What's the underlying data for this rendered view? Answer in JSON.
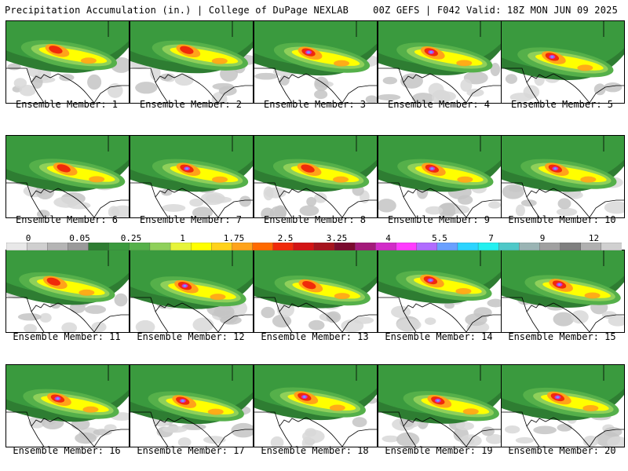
{
  "header": {
    "left_title": "Precipitation Accumulation (in.) | College of DuPage NEXLAB",
    "right_title": "00Z GEFS | F042 Valid: 18Z MON JUN 09 2025"
  },
  "colorbar": {
    "labels": [
      "0",
      "0.05",
      "0.25",
      "1",
      "1.75",
      "2.5",
      "3.25",
      "4",
      "5.5",
      "7",
      "9",
      "12"
    ],
    "colors": [
      "#e8e8e8",
      "#cfcfcf",
      "#b4b4b4",
      "#9a9a9a",
      "#2e7d32",
      "#3a9a3e",
      "#55b04a",
      "#8fd05a",
      "#e6f43a",
      "#ffff00",
      "#ffd21a",
      "#ffa31a",
      "#ff6a00",
      "#f02a0a",
      "#d21414",
      "#a5141e",
      "#7a0a2e",
      "#a31a7a",
      "#d22cc8",
      "#ff3cff",
      "#b06cff",
      "#6aa0ff",
      "#2cd4ff",
      "#22f0f0",
      "#4fc8c8",
      "#9ab4b4",
      "#a0a0a0",
      "#7f7f7f",
      "#b0b0b0",
      "#d0d0d0"
    ]
  },
  "panels": [
    {
      "caption": "Ensemble Member: 1"
    },
    {
      "caption": "Ensemble Member: 2"
    },
    {
      "caption": "Ensemble Member: 3"
    },
    {
      "caption": "Ensemble Member: 4"
    },
    {
      "caption": "Ensemble Member: 5"
    },
    {
      "caption": "Ensemble Member: 6"
    },
    {
      "caption": "Ensemble Member: 7"
    },
    {
      "caption": "Ensemble Member: 8"
    },
    {
      "caption": "Ensemble Member: 9"
    },
    {
      "caption": "Ensemble Member: 10"
    },
    {
      "caption": "Ensemble Member: 11"
    },
    {
      "caption": "Ensemble Member: 12"
    },
    {
      "caption": "Ensemble Member: 13"
    },
    {
      "caption": "Ensemble Member: 14"
    },
    {
      "caption": "Ensemble Member: 15"
    },
    {
      "caption": "Ensemble Member: 16"
    },
    {
      "caption": "Ensemble Member: 17"
    },
    {
      "caption": "Ensemble Member: 18"
    },
    {
      "caption": "Ensemble Member: 19"
    },
    {
      "caption": "Ensemble Member: 20"
    }
  ]
}
